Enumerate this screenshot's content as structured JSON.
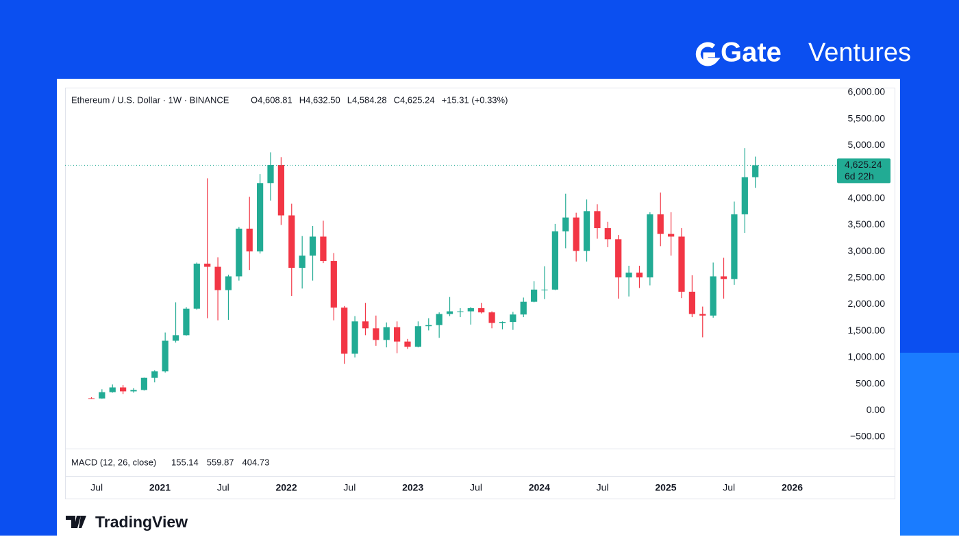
{
  "brand": {
    "logo": "Gate",
    "name": "Ventures"
  },
  "watermark": "TradingView",
  "chart_data": {
    "type": "candlestick",
    "symbol": "Ethereum / U.S. Dollar · 1W · BINANCE",
    "ohlc_legend": [
      {
        "key": "O",
        "text": "4,608.81"
      },
      {
        "key": "H",
        "text": "4,632.50"
      },
      {
        "key": "L",
        "text": "4,584.28"
      },
      {
        "key": "C",
        "text": "4,625.24"
      }
    ],
    "change": "+15.31 (+0.33%)",
    "last_price": {
      "value": 4625.24,
      "label": "4,625.24"
    },
    "countdown": "6d 22h",
    "indicator": {
      "title": "MACD (12, 26, close)",
      "values": [
        {
          "text": "155.14",
          "color": "#9fd9cf"
        },
        {
          "text": "559.87",
          "color": "#2962ff"
        },
        {
          "text": "404.73",
          "color": "#f7841f"
        }
      ]
    },
    "up_color": "#22ab94",
    "down_color": "#f23645",
    "x": [
      "2020-06",
      "2020-07",
      "2020-08",
      "2020-09",
      "2020-10",
      "2020-11",
      "2020-12",
      "2021-01",
      "2021-02",
      "2021-03",
      "2021-04",
      "2021-05",
      "2021-06",
      "2021-07",
      "2021-08",
      "2021-09",
      "2021-10",
      "2021-11",
      "2021-12",
      "2022-01",
      "2022-02",
      "2022-03",
      "2022-04",
      "2022-05",
      "2022-06",
      "2022-07",
      "2022-08",
      "2022-09",
      "2022-10",
      "2022-11",
      "2022-12",
      "2023-01",
      "2023-02",
      "2023-03",
      "2023-04",
      "2023-05",
      "2023-06",
      "2023-07",
      "2023-08",
      "2023-09",
      "2023-10",
      "2023-11",
      "2023-12",
      "2024-01",
      "2024-02",
      "2024-03",
      "2024-04",
      "2024-05",
      "2024-06",
      "2024-07",
      "2024-08",
      "2024-09",
      "2024-10",
      "2024-11",
      "2024-12",
      "2025-01",
      "2025-02",
      "2025-03",
      "2025-04",
      "2025-05",
      "2025-06",
      "2025-07",
      "2025-08",
      "2025-09"
    ],
    "open": [
      230,
      226,
      345,
      435,
      360,
      386,
      615,
      737,
      1315,
      1420,
      1920,
      2770,
      2710,
      2270,
      2530,
      3430,
      3000,
      4290,
      4630,
      3680,
      2690,
      2920,
      3280,
      2820,
      1940,
      1070,
      1680,
      1550,
      1330,
      1570,
      1300,
      1200,
      1590,
      1610,
      1820,
      1870,
      1870,
      1930,
      1850,
      1650,
      1670,
      1810,
      2050,
      2280,
      2280,
      3380,
      3640,
      3010,
      3760,
      3440,
      3230,
      2510,
      2600,
      2510,
      3700,
      3330,
      3280,
      2240,
      1820,
      1790,
      2530,
      2480,
      3700,
      4400
    ],
    "high": [
      250,
      400,
      490,
      480,
      420,
      620,
      760,
      1470,
      2040,
      1950,
      2790,
      4380,
      2890,
      2560,
      3460,
      4030,
      4460,
      4870,
      4780,
      3900,
      3290,
      3480,
      3580,
      2970,
      1970,
      1780,
      2030,
      1790,
      1660,
      1680,
      1350,
      1680,
      1740,
      1850,
      2140,
      1930,
      1950,
      2030,
      1870,
      1680,
      1860,
      2130,
      2440,
      2720,
      3520,
      4090,
      3730,
      3980,
      3890,
      3560,
      3310,
      2730,
      2730,
      3740,
      4110,
      3740,
      3440,
      2550,
      1960,
      2790,
      2880,
      3940,
      4950,
      4790
    ],
    "low": [
      220,
      220,
      335,
      310,
      335,
      375,
      530,
      715,
      1280,
      1410,
      1900,
      1740,
      1700,
      1710,
      2450,
      2650,
      2960,
      3960,
      3500,
      2160,
      2300,
      2450,
      2780,
      1700,
      880,
      1000,
      1420,
      1220,
      1190,
      1080,
      1160,
      1190,
      1510,
      1370,
      1780,
      1760,
      1620,
      1830,
      1550,
      1530,
      1520,
      1760,
      2040,
      2100,
      2270,
      3060,
      2810,
      2810,
      3240,
      3080,
      2110,
      2150,
      2310,
      2360,
      3100,
      2920,
      2120,
      1760,
      1380,
      1750,
      2110,
      2370,
      3350,
      4200
    ],
    "close": [
      226,
      345,
      435,
      360,
      386,
      615,
      737,
      1315,
      1420,
      1920,
      2770,
      2710,
      2270,
      2530,
      3430,
      3000,
      4290,
      4630,
      3680,
      2690,
      2920,
      3280,
      2820,
      1940,
      1070,
      1680,
      1550,
      1330,
      1570,
      1300,
      1200,
      1590,
      1610,
      1820,
      1870,
      1870,
      1930,
      1850,
      1650,
      1670,
      1810,
      2050,
      2280,
      2280,
      3380,
      3640,
      3010,
      3760,
      3440,
      3230,
      2510,
      2600,
      2510,
      3700,
      3330,
      3280,
      2240,
      1820,
      1790,
      2530,
      2480,
      3700,
      4400,
      4625.24
    ],
    "xlim": [
      "2020-04",
      "2026-10"
    ],
    "xticks": [
      {
        "value": "2020-07",
        "label": "Jul"
      },
      {
        "value": "2021-01",
        "label": "2021"
      },
      {
        "value": "2021-07",
        "label": "Jul"
      },
      {
        "value": "2022-01",
        "label": "2022"
      },
      {
        "value": "2022-07",
        "label": "Jul"
      },
      {
        "value": "2023-01",
        "label": "2023"
      },
      {
        "value": "2023-07",
        "label": "Jul"
      },
      {
        "value": "2024-01",
        "label": "2024"
      },
      {
        "value": "2024-07",
        "label": "Jul"
      },
      {
        "value": "2025-01",
        "label": "2025"
      },
      {
        "value": "2025-07",
        "label": "Jul"
      },
      {
        "value": "2026-01",
        "label": "2026"
      }
    ],
    "ylim": [
      -720,
      6090
    ],
    "yticks": [
      {
        "value": 6000,
        "label": "6,000.00"
      },
      {
        "value": 5500,
        "label": "5,500.00"
      },
      {
        "value": 5000,
        "label": "5,000.00"
      },
      {
        "value": 4000,
        "label": "4,000.00"
      },
      {
        "value": 3500,
        "label": "3,500.00"
      },
      {
        "value": 3000,
        "label": "3,000.00"
      },
      {
        "value": 2500,
        "label": "2,500.00"
      },
      {
        "value": 2000,
        "label": "2,000.00"
      },
      {
        "value": 1500,
        "label": "1,500.00"
      },
      {
        "value": 1000,
        "label": "1,000.00"
      },
      {
        "value": 500,
        "label": "500.00"
      },
      {
        "value": 0,
        "label": "0.00"
      },
      {
        "value": -500,
        "label": "−500.00"
      }
    ]
  }
}
